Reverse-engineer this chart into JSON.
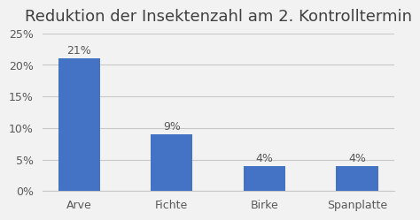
{
  "title": "Reduktion der Insektenzahl am 2. Kontrolltermin",
  "categories": [
    "Arve",
    "Fichte",
    "Birke",
    "Spanplatte"
  ],
  "values": [
    21,
    9,
    4,
    4
  ],
  "labels": [
    "21%",
    "9%",
    "4%",
    "4%"
  ],
  "bar_color": "#4472C4",
  "background_color": "#f2f2f2",
  "plot_bg_color": "#f2f2f2",
  "grid_color": "#c8c8c8",
  "title_color": "#404040",
  "tick_color": "#595959",
  "label_color": "#595959",
  "ylim": [
    0,
    25
  ],
  "yticks": [
    0,
    5,
    10,
    15,
    20,
    25
  ],
  "title_fontsize": 13,
  "tick_fontsize": 9,
  "label_fontsize": 9,
  "bar_width": 0.45
}
